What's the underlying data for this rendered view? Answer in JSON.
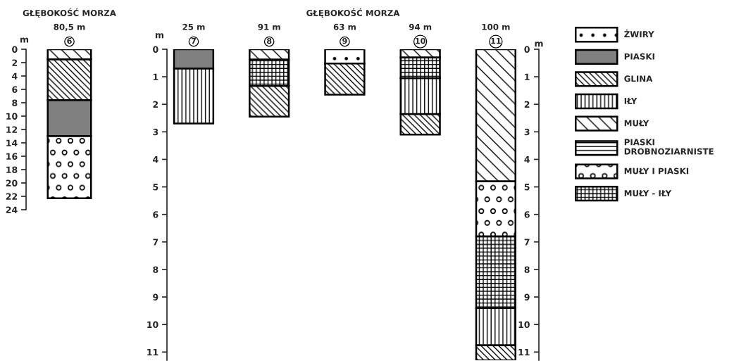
{
  "chart_data": [
    {
      "type": "bar",
      "title": "GŁĘBOKOŚĆ MORZA",
      "ylabel": "m",
      "categories": [
        "80,5 m\n6"
      ],
      "series": [
        {
          "color": "#000000",
          "values": [
            null
          ],
          "base": [
            null
          ]
        },
        {
          "color": "#808080",
          "values": [
            5.4
          ],
          "base": [
            7.6
          ]
        },
        {
          "color": "#000000",
          "values": [
            6.1
          ],
          "base": [
            1.5
          ]
        },
        {
          "color": "#000000",
          "values": [
            null
          ],
          "base": [
            null
          ]
        },
        {
          "color": "#000000",
          "values": [
            1.5
          ],
          "base": [
            0
          ]
        },
        {
          "color": "#000000",
          "values": [
            null
          ],
          "base": [
            null
          ]
        },
        {
          "color": "#000000",
          "values": [
            9.3
          ],
          "base": [
            13
          ]
        },
        {
          "color": "#000000",
          "values": [
            null
          ],
          "base": [
            null
          ]
        }
      ],
      "ylim": [
        24,
        0
      ],
      "yticks": [
        0,
        2,
        4,
        6,
        8,
        10,
        12,
        14,
        16,
        18,
        20,
        22,
        24
      ]
    },
    {
      "type": "bar",
      "title": "GŁĘBOKOŚĆ MORZA",
      "ylabel": "m",
      "y2label": "m",
      "categories": [
        "25 m\n7",
        "91 m\n8",
        "63 m\n9",
        "94 m\n10",
        "100 m\n11"
      ],
      "series": [
        {
          "name": "ŻWIRY",
          "color": "#000000",
          "values": [
            null,
            null,
            0.52,
            null,
            null
          ],
          "base": [
            null,
            null,
            0,
            null,
            null
          ]
        },
        {
          "name": "PIASKI",
          "color": "#808080",
          "values": [
            0.7,
            null,
            null,
            null,
            null
          ],
          "base": [
            0,
            null,
            null,
            null,
            null
          ]
        },
        {
          "name": "GLINA",
          "color": "#000000",
          "values": [
            null,
            1.12,
            1.13,
            0.75,
            0.55
          ],
          "base": [
            null,
            1.33,
            0.52,
            2.35,
            10.75
          ]
        },
        {
          "name": "IŁY",
          "color": "#000000",
          "values": [
            2.0,
            null,
            null,
            1.3,
            1.35
          ],
          "base": [
            0.7,
            null,
            null,
            1.05,
            9.4
          ]
        },
        {
          "name": "MUŁY",
          "color": "#000000",
          "values": [
            null,
            0.38,
            null,
            0.3,
            4.8
          ],
          "base": [
            null,
            0,
            null,
            0,
            0
          ]
        },
        {
          "name": "PIASKI\nDROBNOZIARNISTE",
          "color": "#000000",
          "values": [
            null,
            null,
            null,
            null,
            null
          ],
          "base": [
            null,
            null,
            null,
            null,
            null
          ]
        },
        {
          "name": "MUŁY I PIASKI",
          "color": "#000000",
          "values": [
            null,
            null,
            null,
            null,
            2.0
          ],
          "base": [
            null,
            null,
            null,
            null,
            4.8
          ]
        },
        {
          "name": "MUŁY - IŁY",
          "color": "#000000",
          "values": [
            null,
            0.95,
            null,
            0.75,
            2.6
          ],
          "base": [
            null,
            0.38,
            null,
            0.3,
            6.8
          ]
        }
      ],
      "ylim": [
        11.3,
        0
      ],
      "yticks": [
        0,
        1,
        2,
        3,
        4,
        5,
        6,
        7,
        8,
        9,
        10,
        11
      ],
      "y2lim": [
        11.3,
        0
      ],
      "y2ticks": [
        0,
        1,
        2,
        3,
        4,
        5,
        6,
        7,
        8,
        9,
        10,
        11
      ],
      "legend": "right"
    }
  ]
}
